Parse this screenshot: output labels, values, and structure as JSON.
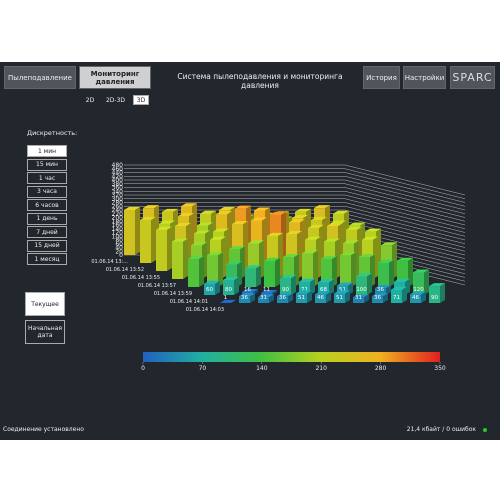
{
  "nav": {
    "tabs": [
      "Пылеподавление",
      "Мониторинг давления"
    ],
    "title": "Система пылеподавления и мониторинга давления",
    "buttons": [
      "История",
      "Настройки"
    ],
    "logo": "SPARC"
  },
  "view_tabs": [
    "2D",
    "2D-3D",
    "3D"
  ],
  "discreteness": {
    "label": "Дискретность:",
    "options": [
      "1 мин",
      "15 мин",
      "1 час",
      "3 часа",
      "6 часов",
      "1 день",
      "7 дней",
      "15 дней",
      "1 месяц"
    ]
  },
  "time_buttons": [
    "Текущее",
    "Начальная дата"
  ],
  "chart_data": {
    "type": "bar3d",
    "categories": [
      "01.06.14 13:...",
      "01.06.14 13:52",
      "01.06.14 13:55",
      "01.06.14 13:57",
      "01.06.14 13:59",
      "01.06.14 14:01",
      "01.06.14 14:03"
    ],
    "values": [
      [
        240,
        250,
        230,
        260,
        220,
        240,
        200,
        210,
        190,
        230,
        250,
        220
      ],
      [
        230,
        210,
        250,
        200,
        260,
        290,
        280,
        260,
        240,
        230,
        210,
        200
      ],
      [
        220,
        240,
        200,
        210,
        250,
        270,
        300,
        260,
        230,
        240,
        220,
        210
      ],
      [
        200,
        180,
        210,
        160,
        190,
        230,
        240,
        210,
        200,
        190,
        210,
        180
      ],
      [
        150,
        170,
        120,
        100,
        140,
        160,
        180,
        150,
        170,
        160,
        130,
        140
      ],
      [
        60,
        80,
        16,
        11,
        90,
        71,
        68,
        51,
        100,
        36,
        71,
        120
      ],
      [
        1,
        36,
        31,
        36,
        51,
        46,
        51,
        31,
        36,
        71,
        46,
        90
      ]
    ],
    "ylim": [
      0,
      480
    ],
    "yticks": [
      0,
      20,
      40,
      60,
      80,
      100,
      120,
      140,
      160,
      180,
      200,
      220,
      240,
      260,
      280,
      300,
      320,
      340,
      360,
      380,
      400,
      420,
      440,
      460,
      480
    ],
    "colorbar": {
      "lim": [
        0,
        350
      ],
      "ticks": [
        0,
        70,
        140,
        210,
        280,
        350
      ]
    }
  },
  "status": {
    "left": "Соединение установлено",
    "right": "21,4 кбайт / 0 ошибок"
  }
}
